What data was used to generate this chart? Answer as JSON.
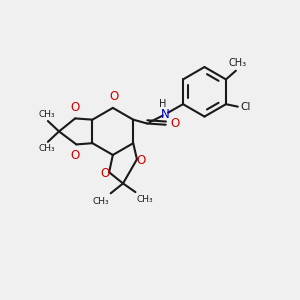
{
  "bg_color": "#f0f0f0",
  "bond_color": "#1a1a1a",
  "oxygen_color": "#cc0000",
  "nitrogen_color": "#0000cc",
  "lw": 1.5,
  "figsize": [
    3.0,
    3.0
  ],
  "dpi": 100,
  "xlim": [
    -0.1,
    1.1
  ],
  "ylim": [
    -0.05,
    1.1
  ]
}
